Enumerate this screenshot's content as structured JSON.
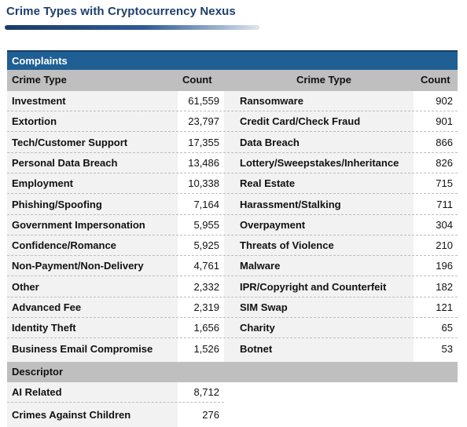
{
  "title": "Crime Types with Cryptocurrency Nexus",
  "section_label": "Complaints",
  "headers": {
    "crime_type_left": "Crime Type",
    "count_left": "Count",
    "crime_type_right": "Crime Type",
    "count_right": "Count"
  },
  "left_rows": [
    {
      "name": "Investment",
      "count": "61,559"
    },
    {
      "name": "Extortion",
      "count": "23,797"
    },
    {
      "name": "Tech/Customer Support",
      "count": "17,355"
    },
    {
      "name": "Personal Data Breach",
      "count": "13,486"
    },
    {
      "name": "Employment",
      "count": "10,338"
    },
    {
      "name": "Phishing/Spoofing",
      "count": "7,164"
    },
    {
      "name": "Government Impersonation",
      "count": "5,955"
    },
    {
      "name": "Confidence/Romance",
      "count": "5,925"
    },
    {
      "name": "Non-Payment/Non-Delivery",
      "count": "4,761"
    },
    {
      "name": "Other",
      "count": "2,332"
    },
    {
      "name": "Advanced Fee",
      "count": "2,319"
    },
    {
      "name": "Identity Theft",
      "count": "1,656"
    },
    {
      "name": "Business Email Compromise",
      "count": "1,526"
    }
  ],
  "right_rows": [
    {
      "name": "Ransomware",
      "count": "902"
    },
    {
      "name": "Credit Card/Check Fraud",
      "count": "901"
    },
    {
      "name": "Data Breach",
      "count": "866"
    },
    {
      "name": "Lottery/Sweepstakes/Inheritance",
      "count": "826"
    },
    {
      "name": "Real Estate",
      "count": "715"
    },
    {
      "name": "Harassment/Stalking",
      "count": "711"
    },
    {
      "name": "Overpayment",
      "count": "304"
    },
    {
      "name": "Threats of Violence",
      "count": "210"
    },
    {
      "name": "Malware",
      "count": "196"
    },
    {
      "name": "IPR/Copyright and Counterfeit",
      "count": "182"
    },
    {
      "name": "SIM Swap",
      "count": "121"
    },
    {
      "name": "Charity",
      "count": "65"
    },
    {
      "name": "Botnet",
      "count": "53"
    }
  ],
  "descriptor_label": "Descriptor",
  "descriptor_rows": [
    {
      "name": "AI Related",
      "count": "8,712"
    },
    {
      "name": "Crimes Against Children",
      "count": "276"
    }
  ],
  "colors": {
    "title": "#1d3f6e",
    "banner": "#1f5f94",
    "header_band": "#bfbfbf",
    "panel": "#f2f2f2"
  }
}
